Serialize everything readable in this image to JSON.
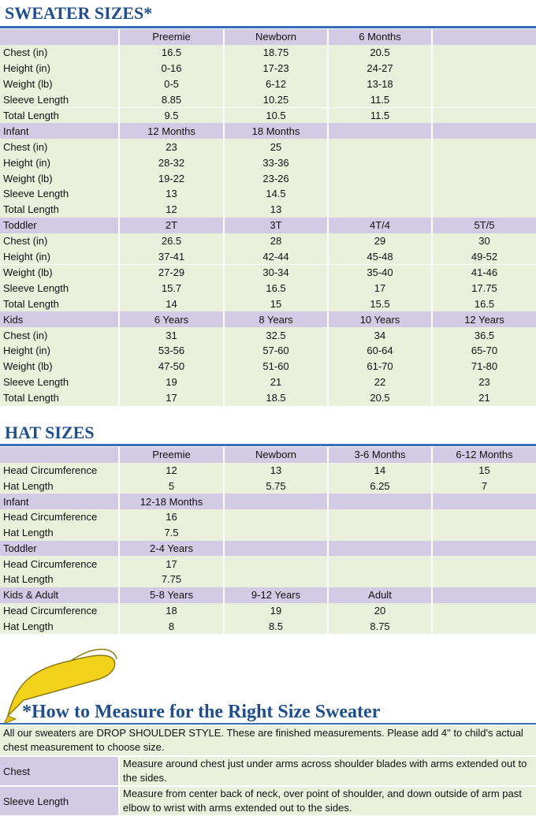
{
  "sweater": {
    "title": "SWEATER SIZES*",
    "sections": [
      {
        "header": [
          null,
          "Preemie",
          "Newborn",
          "6 Months",
          null
        ],
        "rows": [
          [
            "Chest (in)",
            "16.5",
            "18.75",
            "20.5",
            null
          ],
          [
            "Height (in)",
            "0-16",
            "17-23",
            "24-27",
            null
          ],
          [
            "Weight (lb)",
            "0-5",
            "6-12",
            "13-18",
            null
          ],
          [
            "Sleeve Length",
            "8.85",
            "10.25",
            "11.5",
            null
          ],
          [
            "Total Length",
            "9.5",
            "10.5",
            "11.5",
            null
          ]
        ]
      },
      {
        "header": [
          "Infant",
          "12 Months",
          "18 Months",
          null,
          null
        ],
        "rows": [
          [
            "Chest (in)",
            "23",
            "25",
            null,
            null
          ],
          [
            "Height (in)",
            "28-32",
            "33-36",
            null,
            null
          ],
          [
            "Weight (lb)",
            "19-22",
            "23-26",
            null,
            null
          ],
          [
            "Sleeve Length",
            "13",
            "14.5",
            null,
            null
          ],
          [
            "Total Length",
            "12",
            "13",
            null,
            null
          ]
        ]
      },
      {
        "header": [
          "Toddler",
          "2T",
          "3T",
          "4T/4",
          "5T/5"
        ],
        "rows": [
          [
            "Chest (in)",
            "26.5",
            "28",
            "29",
            "30"
          ],
          [
            "Height (in)",
            "37-41",
            "42-44",
            "45-48",
            "49-52"
          ],
          [
            "Weight (lb)",
            "27-29",
            "30-34",
            "35-40",
            "41-46"
          ],
          [
            "Sleeve Length",
            "15.7",
            "16.5",
            "17",
            "17.75"
          ],
          [
            "Total Length",
            "14",
            "15",
            "15.5",
            "16.5"
          ]
        ]
      },
      {
        "header": [
          "Kids",
          "6 Years",
          "8 Years",
          "10 Years",
          "12 Years"
        ],
        "rows": [
          [
            "Chest (in)",
            "31",
            "32.5",
            "34",
            "36.5"
          ],
          [
            "Height (in)",
            "53-56",
            "57-60",
            "60-64",
            "65-70"
          ],
          [
            "Weight (lb)",
            "47-50",
            "51-60",
            "61-70",
            "71-80"
          ],
          [
            "Sleeve Length",
            "19",
            "21",
            "22",
            "23"
          ],
          [
            "Total Length",
            "17",
            "18.5",
            "20.5",
            "21"
          ]
        ]
      }
    ]
  },
  "hat": {
    "title": "HAT SIZES",
    "sections": [
      {
        "header": [
          null,
          "Preemie",
          "Newborn",
          "3-6 Months",
          "6-12 Months"
        ],
        "rows": [
          [
            "Head Circumference",
            "12",
            "13",
            "14",
            "15"
          ],
          [
            "Hat Length",
            "5",
            "5.75",
            "6.25",
            "7"
          ]
        ]
      },
      {
        "header": [
          "Infant",
          "12-18 Months",
          null,
          null,
          null
        ],
        "rows": [
          [
            "Head Circumference",
            "16",
            null,
            null,
            null
          ],
          [
            "Hat Length",
            "7.5",
            null,
            null,
            null
          ]
        ]
      },
      {
        "header": [
          "Toddler",
          "2-4 Years",
          null,
          null,
          null
        ],
        "rows": [
          [
            "Head Circumference",
            "17",
            null,
            null,
            null
          ],
          [
            "Hat Length",
            "7.75",
            null,
            null,
            null
          ]
        ]
      },
      {
        "header": [
          "Kids & Adult",
          "5-8 Years",
          "9-12 Years",
          "Adult",
          null
        ],
        "rows": [
          [
            "Head Circumference",
            "18",
            "19",
            "20",
            null
          ],
          [
            "Hat Length",
            "8",
            "8.5",
            "8.75",
            null
          ]
        ]
      }
    ]
  },
  "measure": {
    "title": "*How to Measure for the Right Size Sweater",
    "intro": "All our sweaters are DROP SHOULDER STYLE.  These are finished measurements.  Please add 4\" to child's actual chest measurement to choose size.",
    "rows": [
      [
        "Chest",
        "Measure around chest just under arms across shoulder blades with arms extended out to the sides."
      ],
      [
        "Sleeve Length",
        "Measure from center back of neck, over point of shoulder, and down outside of arm past elbow to wrist with arms extended out to the sides."
      ]
    ]
  }
}
